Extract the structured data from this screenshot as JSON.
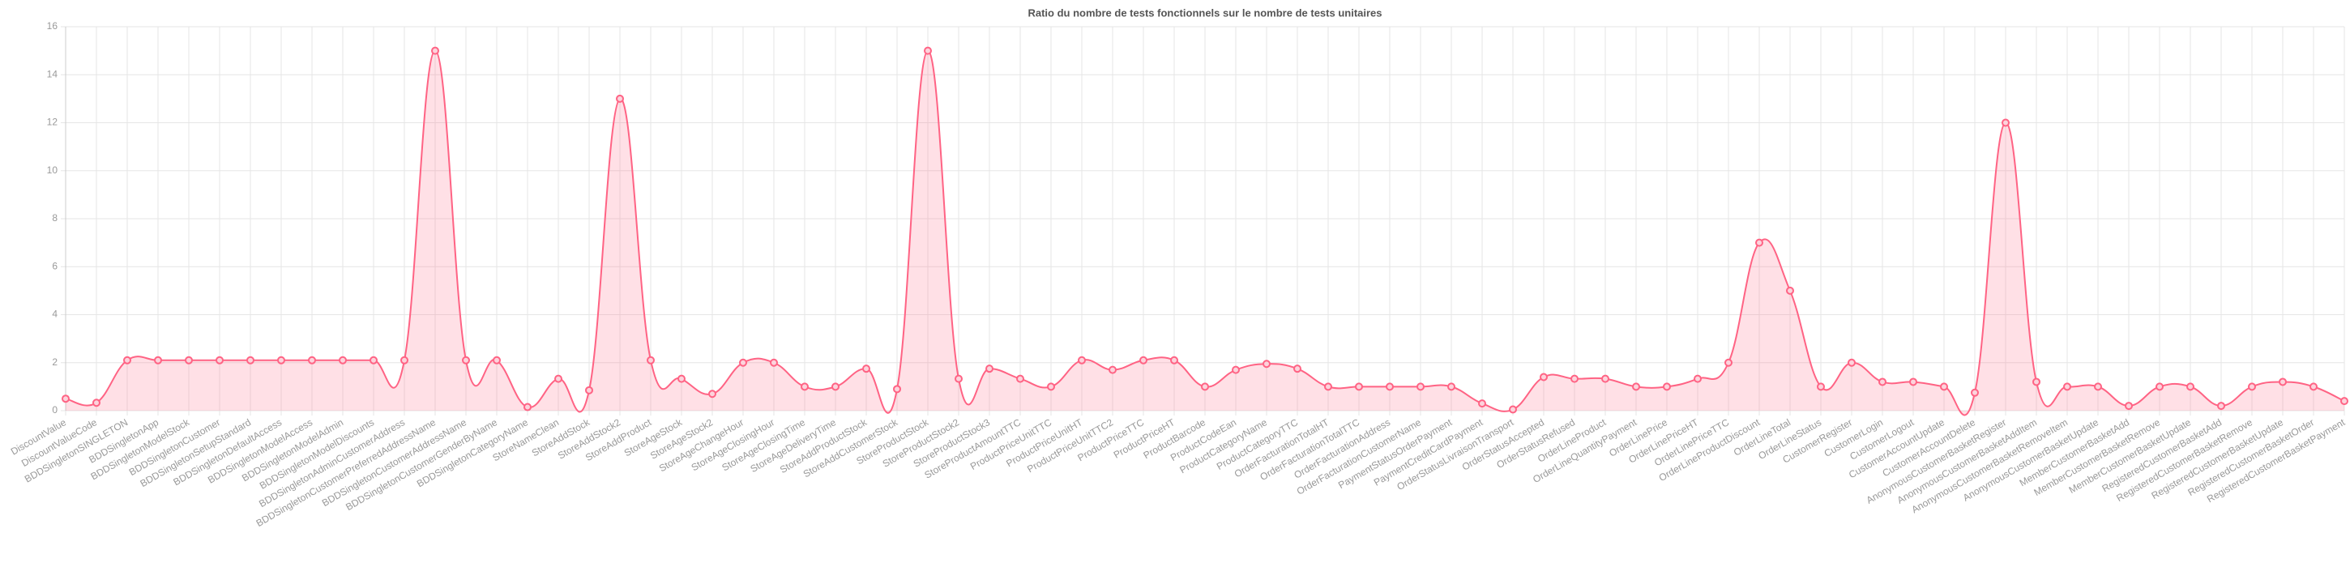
{
  "chart_data": {
    "type": "line",
    "title": "Ratio du nombre de tests fonctionnels sur le nombre de tests unitaires",
    "categories": [
      "DiscountValue",
      "DiscountValueCode",
      "BDDSingletonSINGLETON",
      "BDDSingletonApp",
      "BDDSingletonModelStock",
      "BDDSingletonCustomer",
      "BDDSingletonSetupStandard",
      "BDDSingletonDefaultAccess",
      "BDDSingletonModelAccess",
      "BDDSingletonModelAdmin",
      "BDDSingletonModelDiscounts",
      "BDDSingletonAdminCustomerAddress",
      "BDDSingletonCustomerPreferredAddressName",
      "BDDSingletonCustomerAddressName",
      "BDDSingletonCustomerGenderByName",
      "BDDSingletonCategoryName",
      "StoreNameClean",
      "StoreAddStock",
      "StoreAddStock2",
      "StoreAddProduct",
      "StoreAgeStock",
      "StoreAgeStock2",
      "StoreAgeChangeHour",
      "StoreAgeClosingHour",
      "StoreAgeClosingTime",
      "StoreAgeDeliveryTime",
      "StoreAddProductStock",
      "StoreAddCustomerStock",
      "StoreProductStock",
      "StoreProductStock2",
      "StoreProductStock3",
      "StoreProductAmountTTC",
      "ProductPriceUnitTTC",
      "ProductPriceUnitHT",
      "ProductPriceUnitTTC2",
      "ProductPriceTTC",
      "ProductPriceHT",
      "ProductBarcode",
      "ProductCodeEan",
      "ProductCategoryName",
      "ProductCategoryTTC",
      "OrderFacturationTotalHT",
      "OrderFacturationTotalTTC",
      "OrderFacturationAddress",
      "OrderFacturationCustomerName",
      "PaymentStatusOrderPayment",
      "PaymentCreditCardPayment",
      "OrderStatusLivraisonTransport",
      "OrderStatusAccepted",
      "OrderStatusRefused",
      "OrderLineProduct",
      "OrderLineQuantityPayment",
      "OrderLinePrice",
      "OrderLinePriceHT",
      "OrderLinePriceTTC",
      "OrderLineProductDiscount",
      "OrderLineTotal",
      "OrderLineStatus",
      "CustomerRegister",
      "CustomerLogin",
      "CustomerLogout",
      "CustomerAccountUpdate",
      "CustomerAccountDelete",
      "AnonymousCustomerBasketRegister",
      "AnonymousCustomerBasketAddItem",
      "AnonymousCustomerBasketRemoveItem",
      "AnonymousCustomerBasketUpdate",
      "MemberCustomerBasketAdd",
      "MemberCustomerBasketRemove",
      "MemberCustomerBasketUpdate",
      "RegisteredCustomerBasketAdd",
      "RegisteredCustomerBasketRemove",
      "RegisteredCustomerBasketUpdate",
      "RegisteredCustomerBasketOrder",
      "RegisteredCustomerBasketPayment"
    ],
    "series": [
      {
        "name": "Ratio",
        "color": "#ff6384",
        "values": [
          0.5,
          0.33,
          2.1,
          2.1,
          2.1,
          2.1,
          2.1,
          2.1,
          2.1,
          2.1,
          2.1,
          2.1,
          15,
          2.1,
          2.1,
          0.15,
          1.33,
          0.85,
          13,
          2.1,
          1.33,
          0.7,
          2,
          2,
          1,
          1,
          1.75,
          0.9,
          15,
          1.33,
          1.75,
          1.33,
          1,
          2.1,
          1.7,
          2.1,
          2.1,
          1,
          1.7,
          1.95,
          1.75,
          1,
          1,
          1,
          1,
          1,
          0.3,
          0.05,
          1.4,
          1.33,
          1.33,
          1,
          1,
          1.33,
          2,
          7,
          5,
          1,
          2,
          1.2,
          1.2,
          1,
          0.75,
          12,
          1.2,
          1,
          1,
          0.2,
          1,
          1,
          0.2,
          1,
          1.2,
          1,
          0.4
        ]
      }
    ],
    "ylim": [
      0,
      16
    ],
    "yticks": [
      0,
      2,
      4,
      6,
      8,
      10,
      12,
      14,
      16
    ],
    "grid": true
  }
}
